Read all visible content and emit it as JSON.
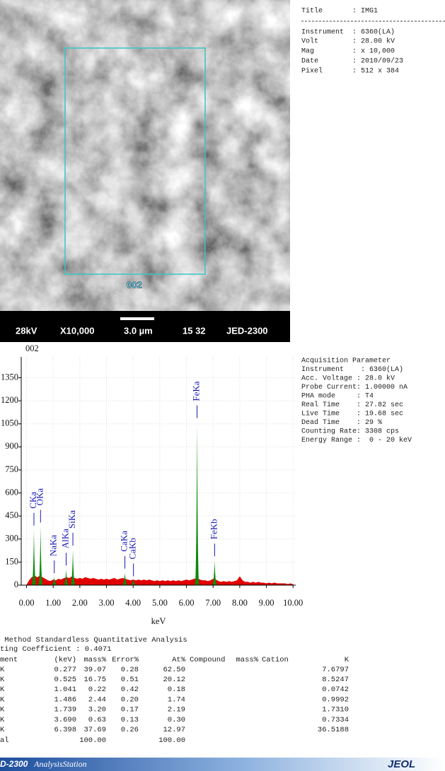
{
  "sem_image": {
    "roi_label": "002",
    "info_bar": [
      "28kV",
      "X10,000",
      "3.0 µm",
      "15 32",
      "JED-2300"
    ]
  },
  "image_info": {
    "lines": [
      "Title       : IMG1",
      "Instrument  : 6360(LA)",
      "Volt        : 28.00 kV",
      "Mag         : x 10,000",
      "Date        : 2010/09/23",
      "Pixel       : 512 x 384"
    ]
  },
  "acquisition": {
    "lines": [
      "Acquisition Parameter",
      "Instrument    : 6360(LA)",
      "Acc. Voltage : 28.0 kV",
      "Probe Current: 1.00000 nA",
      "PHA mode     : T4",
      "Real Time    : 27.82 sec",
      "Live Time    : 19.68 sec",
      "Dead Time    : 29 %",
      "Counting Rate: 3308 cps",
      "Energy Range :  0 - 20 keV"
    ]
  },
  "chart_data": {
    "type": "area",
    "title": "002",
    "x_label": "keV",
    "color": "#e00000",
    "peak_color": "#0c8a0c",
    "grid": true,
    "x": [
      0,
      0.1,
      0.2,
      0.3,
      0.4,
      0.5,
      0.6,
      0.7,
      0.8,
      0.9,
      1,
      1.1,
      1.2,
      1.3,
      1.4,
      1.5,
      1.6,
      1.7,
      1.8,
      1.9,
      2,
      2.1,
      2.2,
      2.3,
      2.4,
      2.5,
      2.6,
      2.7,
      2.8,
      2.9,
      3,
      3.1,
      3.2,
      3.3,
      3.4,
      3.5,
      3.6,
      3.7,
      3.8,
      3.9,
      4,
      4.1,
      4.2,
      4.3,
      4.4,
      4.5,
      4.6,
      4.7,
      4.8,
      4.9,
      5,
      5.1,
      5.2,
      5.3,
      5.4,
      5.5,
      5.6,
      5.7,
      5.8,
      5.9,
      6,
      6.1,
      6.2,
      6.3,
      6.4,
      6.5,
      6.6,
      6.7,
      6.8,
      6.9,
      7,
      7.1,
      7.2,
      7.3,
      7.4,
      7.5,
      7.6,
      7.7,
      7.8,
      7.9,
      8,
      8.1,
      8.2,
      8.3,
      8.4,
      8.5,
      8.6,
      8.7,
      8.8,
      8.9,
      9,
      9.1,
      9.2,
      9.3,
      9.4,
      9.5,
      9.6,
      9.7,
      9.8,
      9.9,
      10
    ],
    "values": [
      0,
      30,
      50,
      60,
      50,
      60,
      50,
      40,
      30,
      25,
      35,
      30,
      40,
      35,
      45,
      50,
      45,
      55,
      45,
      40,
      45,
      40,
      50,
      45,
      40,
      45,
      40,
      35,
      40,
      35,
      40,
      35,
      40,
      45,
      35,
      40,
      45,
      40,
      35,
      30,
      35,
      30,
      35,
      30,
      35,
      30,
      35,
      30,
      25,
      30,
      25,
      30,
      25,
      30,
      25,
      30,
      25,
      30,
      25,
      30,
      35,
      30,
      35,
      40,
      45,
      35,
      30,
      30,
      25,
      30,
      40,
      35,
      25,
      20,
      25,
      20,
      25,
      20,
      25,
      30,
      55,
      30,
      20,
      20,
      15,
      20,
      15,
      20,
      15,
      15,
      10,
      15,
      10,
      15,
      10,
      10,
      10,
      10,
      5,
      10,
      5
    ],
    "peaks": [
      {
        "label": "CKa",
        "x": 0.277,
        "y": 360
      },
      {
        "label": "OKa",
        "x": 0.525,
        "y": 380
      },
      {
        "label": "NaKa",
        "x": 1.041,
        "y": 50
      },
      {
        "label": "AlKa",
        "x": 1.486,
        "y": 100
      },
      {
        "label": "SiKa",
        "x": 1.739,
        "y": 230
      },
      {
        "label": "CaKa",
        "x": 3.69,
        "y": 80
      },
      {
        "label": "CaKb",
        "x": 4.012,
        "y": 30
      },
      {
        "label": "FeKa",
        "x": 6.398,
        "y": 1060
      },
      {
        "label": "FeKb",
        "x": 7.057,
        "y": 160
      }
    ],
    "xlim": [
      -0.2,
      10.1
    ],
    "ylim": [
      0,
      1486
    ],
    "xticks": [
      {
        "value": 0,
        "label": "0.00"
      },
      {
        "value": 1,
        "label": "1.00"
      },
      {
        "value": 2,
        "label": "2.00"
      },
      {
        "value": 3,
        "label": "3.00"
      },
      {
        "value": 4,
        "label": "4.00"
      },
      {
        "value": 5,
        "label": "5.00"
      },
      {
        "value": 6,
        "label": "6.00"
      },
      {
        "value": 7,
        "label": "7.00"
      },
      {
        "value": 8,
        "label": "8.00"
      },
      {
        "value": 9,
        "label": "9.00"
      },
      {
        "value": 10,
        "label": "10.00"
      }
    ],
    "yticks": [
      0,
      150,
      300,
      450,
      600,
      750,
      900,
      1050,
      1200,
      1350
    ]
  },
  "quant": {
    "title": " Method Standardless Quantitative Analysis",
    "coefficient": "ting Coefficient : 0.4071",
    "header": [
      "ment",
      "(keV)",
      "mass%",
      "Error%",
      "At%",
      "Compound",
      "mass%",
      "Cation",
      "K"
    ],
    "rows": [
      [
        "K",
        "0.277",
        "39.07",
        "0.28",
        "62.50",
        "7.6797"
      ],
      [
        "K",
        "0.525",
        "16.75",
        "0.51",
        "20.12",
        "8.5247"
      ],
      [
        "K",
        "1.041",
        "0.22",
        "0.42",
        "0.18",
        "0.0742"
      ],
      [
        "K",
        "1.486",
        "2.44",
        "0.20",
        "1.74",
        "0.9992"
      ],
      [
        "K",
        "1.739",
        "3.20",
        "0.17",
        "2.19",
        "1.7310"
      ],
      [
        "K",
        "3.690",
        "0.63",
        "0.13",
        "0.30",
        "0.7334"
      ],
      [
        "K",
        "6.398",
        "37.69",
        "0.26",
        "12.97",
        "36.5188"
      ]
    ],
    "total": [
      "al",
      "100.00",
      "100.00"
    ]
  },
  "footer": {
    "product": "D-2300",
    "station": "AnalysisStation",
    "logo": "JEOL"
  }
}
